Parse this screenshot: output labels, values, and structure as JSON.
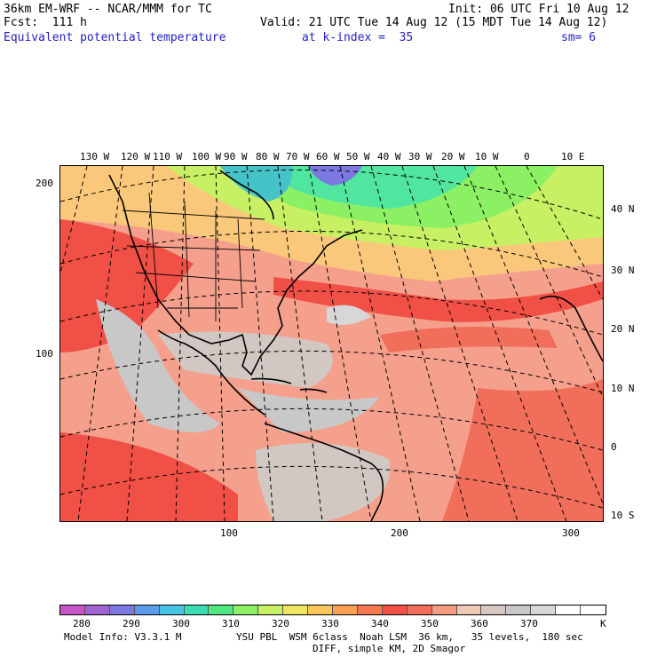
{
  "header": {
    "model": "36km EM-WRF -- NCAR/MMM for TC",
    "init": "Init: 06 UTC Fri 10 Aug 12",
    "fcst": "Fcst:  111 h",
    "valid": "Valid: 21 UTC Tue 14 Aug 12 (15 MDT Tue 14 Aug 12)",
    "field": "Equivalent potential temperature",
    "level": "at k-index =  35",
    "smooth": "sm= 6"
  },
  "map": {
    "lon_labels": [
      "130 W",
      "120 W",
      "110 W",
      "100 W",
      "90 W",
      "80 W",
      "70 W",
      "60 W",
      "50 W",
      "40 W",
      "30 W",
      "20 W",
      "10 W",
      "0",
      "10 E"
    ],
    "lat_labels": [
      "40 N",
      "30 N",
      "20 N",
      "10 N",
      "0",
      "10 S"
    ],
    "y_ticks": [
      "200",
      "100"
    ],
    "x_ticks": [
      "100",
      "200",
      "300"
    ]
  },
  "colorbar": {
    "colors": [
      "#c855c8",
      "#a064d2",
      "#7d78e1",
      "#5a9beb",
      "#46c3e6",
      "#3cdcb4",
      "#50e682",
      "#8cf064",
      "#c8f064",
      "#f0e664",
      "#fac85a",
      "#faa050",
      "#f57850",
      "#f05046",
      "#f06e5a",
      "#f59b82",
      "#f0c8b4",
      "#d7c8c3",
      "#c8c8c8",
      "#d7d7d7",
      "#ffffff",
      "#ffffff"
    ],
    "labels": [
      "280",
      "290",
      "300",
      "310",
      "320",
      "330",
      "340",
      "350",
      "360",
      "370"
    ],
    "unit": "K"
  },
  "footer": {
    "line1_left": "Model Info: V3.3.1 M",
    "line1_right": "YSU PBL  WSM 6class  Noah LSM  36 km,   35 levels,  180 sec",
    "line2": "DIFF, simple KM, 2D Smagor"
  }
}
